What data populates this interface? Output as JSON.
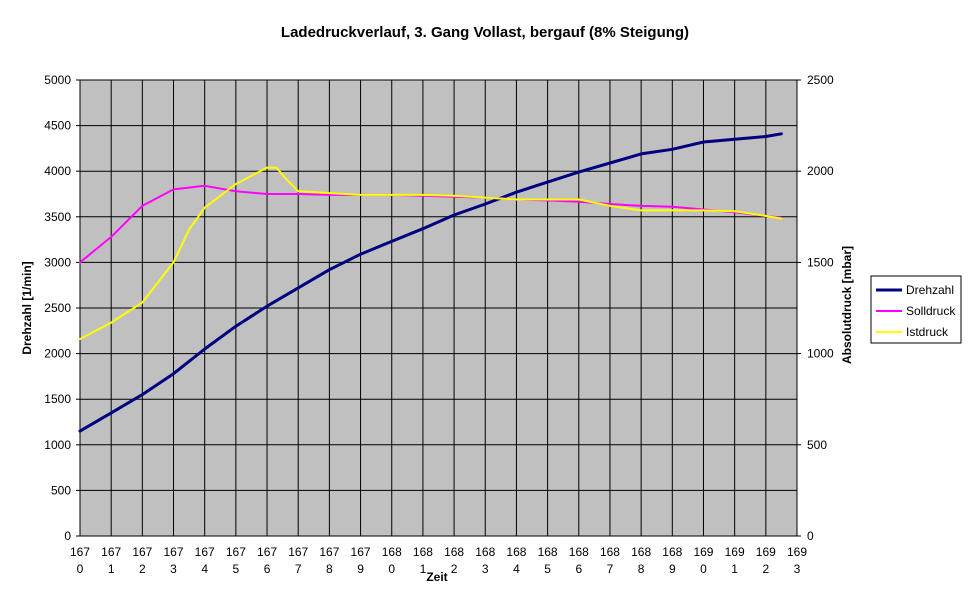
{
  "chart_data": {
    "type": "line",
    "title": "Ladedruckverlauf, 3. Gang Vollast, bergauf (8% Steigung)",
    "xlabel": "Zeit",
    "ylabel": "Drehzahl [1/min]",
    "y2label": "Absolutdruck [mbar]",
    "ylim": [
      0,
      5000
    ],
    "y2lim": [
      0,
      2500
    ],
    "yticks": [
      "0",
      "500",
      "1000",
      "1500",
      "2000",
      "2500",
      "3000",
      "3500",
      "4000",
      "4500",
      "5000"
    ],
    "y2ticks": [
      "0",
      "500",
      "1000",
      "1500",
      "2000",
      "2500"
    ],
    "xlim": [
      1670,
      1693
    ],
    "xticks": [
      {
        "line1": "167",
        "line2": "0"
      },
      {
        "line1": "167",
        "line2": "1"
      },
      {
        "line1": "167",
        "line2": "2"
      },
      {
        "line1": "167",
        "line2": "3"
      },
      {
        "line1": "167",
        "line2": "4"
      },
      {
        "line1": "167",
        "line2": "5"
      },
      {
        "line1": "167",
        "line2": "6"
      },
      {
        "line1": "167",
        "line2": "7"
      },
      {
        "line1": "167",
        "line2": "8"
      },
      {
        "line1": "167",
        "line2": "9"
      },
      {
        "line1": "168",
        "line2": "0"
      },
      {
        "line1": "168",
        "line2": "1"
      },
      {
        "line1": "168",
        "line2": "2"
      },
      {
        "line1": "168",
        "line2": "3"
      },
      {
        "line1": "168",
        "line2": "4"
      },
      {
        "line1": "168",
        "line2": "5"
      },
      {
        "line1": "168",
        "line2": "6"
      },
      {
        "line1": "168",
        "line2": "7"
      },
      {
        "line1": "168",
        "line2": "8"
      },
      {
        "line1": "168",
        "line2": "9"
      },
      {
        "line1": "169",
        "line2": "0"
      },
      {
        "line1": "169",
        "line2": "1"
      },
      {
        "line1": "169",
        "line2": "2"
      },
      {
        "line1": "169",
        "line2": "3"
      }
    ],
    "grid": true,
    "plot_background": "#c0c0c0",
    "legend_position": "right",
    "series": [
      {
        "name": "Drehzahl",
        "axis": "left",
        "color": "#000080",
        "x": [
          1670,
          1671,
          1672,
          1673,
          1674,
          1675,
          1676,
          1677,
          1678,
          1679,
          1680,
          1681,
          1682,
          1683,
          1684,
          1685,
          1686,
          1687,
          1688,
          1689,
          1690,
          1691,
          1692,
          1692.5
        ],
        "y": [
          1150,
          1350,
          1550,
          1780,
          2050,
          2300,
          2520,
          2720,
          2920,
          3090,
          3230,
          3370,
          3520,
          3640,
          3770,
          3880,
          3990,
          4090,
          4190,
          4240,
          4320,
          4350,
          4380,
          4410
        ]
      },
      {
        "name": "Solldruck",
        "axis": "right",
        "color": "#ff00ff",
        "x": [
          1670,
          1671,
          1672,
          1673,
          1674,
          1675,
          1676,
          1677,
          1678,
          1679,
          1680,
          1681,
          1682,
          1683,
          1684,
          1685,
          1686,
          1687,
          1688,
          1689,
          1690,
          1691,
          1692,
          1692.5
        ],
        "y": [
          1500,
          1640,
          1810,
          1900,
          1920,
          1890,
          1875,
          1875,
          1870,
          1870,
          1870,
          1865,
          1860,
          1855,
          1845,
          1840,
          1832,
          1820,
          1810,
          1805,
          1790,
          1775,
          1755,
          1745
        ]
      },
      {
        "name": "Istdruck",
        "axis": "right",
        "color": "#ffff00",
        "x": [
          1670,
          1671,
          1672,
          1673,
          1673.5,
          1674,
          1675,
          1676,
          1676.3,
          1676.6,
          1677,
          1678,
          1679,
          1680,
          1681,
          1682,
          1683,
          1684,
          1685,
          1686,
          1687,
          1688,
          1689,
          1690,
          1691,
          1692,
          1692.5
        ],
        "y": [
          1080,
          1170,
          1280,
          1500,
          1680,
          1800,
          1930,
          2020,
          2020,
          1960,
          1890,
          1880,
          1870,
          1870,
          1870,
          1865,
          1855,
          1845,
          1845,
          1845,
          1810,
          1785,
          1785,
          1785,
          1780,
          1755,
          1740
        ]
      }
    ]
  }
}
